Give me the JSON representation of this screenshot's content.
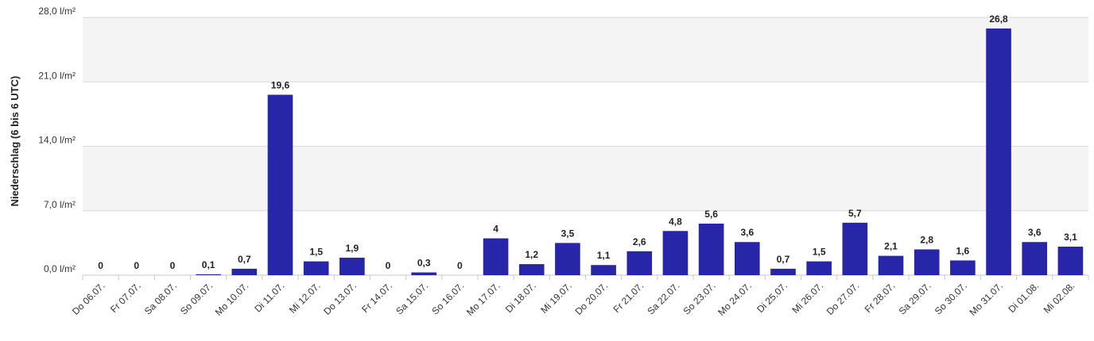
{
  "chart_data": {
    "type": "bar",
    "ylabel": "Niederschlag (6 bis 6 UTC)",
    "ylim": [
      0,
      28
    ],
    "yticks": [
      0,
      7,
      14,
      21,
      28
    ],
    "ytick_labels": [
      "0,0 l/m²",
      "7,0 l/m²",
      "14,0 l/m²",
      "21,0 l/m²",
      "28,0 l/m²"
    ],
    "grid": true,
    "alternating_bands": true,
    "bar_color": "#2826a8",
    "categories": [
      "Do 06.07.",
      "Fr 07.07.",
      "Sa 08.07.",
      "So 09.07.",
      "Mo 10.07.",
      "Di 11.07.",
      "Mi 12.07.",
      "Do 13.07.",
      "Fr 14.07.",
      "Sa 15.07.",
      "So 16.07.",
      "Mo 17.07.",
      "Di 18.07.",
      "Mi 19.07.",
      "Do 20.07.",
      "Fr 21.07.",
      "Sa 22.07.",
      "So 23.07.",
      "Mo 24.07.",
      "Di 25.07.",
      "Mi 26.07.",
      "Do 27.07.",
      "Fr 28.07.",
      "Sa 29.07.",
      "So 30.07.",
      "Mo 31.07.",
      "Di 01.08.",
      "Mi 02.08."
    ],
    "values": [
      0,
      0,
      0,
      0.1,
      0.7,
      19.6,
      1.5,
      1.9,
      0,
      0.3,
      0,
      4,
      1.2,
      3.5,
      1.1,
      2.6,
      4.8,
      5.6,
      3.6,
      0.7,
      1.5,
      5.7,
      2.1,
      2.8,
      1.6,
      26.8,
      3.6,
      3.1
    ],
    "value_labels": [
      "0",
      "0",
      "0",
      "0,1",
      "0,7",
      "19,6",
      "1,5",
      "1,9",
      "0",
      "0,3",
      "0",
      "4",
      "1,2",
      "3,5",
      "1,1",
      "2,6",
      "4,8",
      "5,6",
      "3,6",
      "0,7",
      "1,5",
      "5,7",
      "2,1",
      "2,8",
      "1,6",
      "26,8",
      "3,6",
      "3,1"
    ]
  }
}
